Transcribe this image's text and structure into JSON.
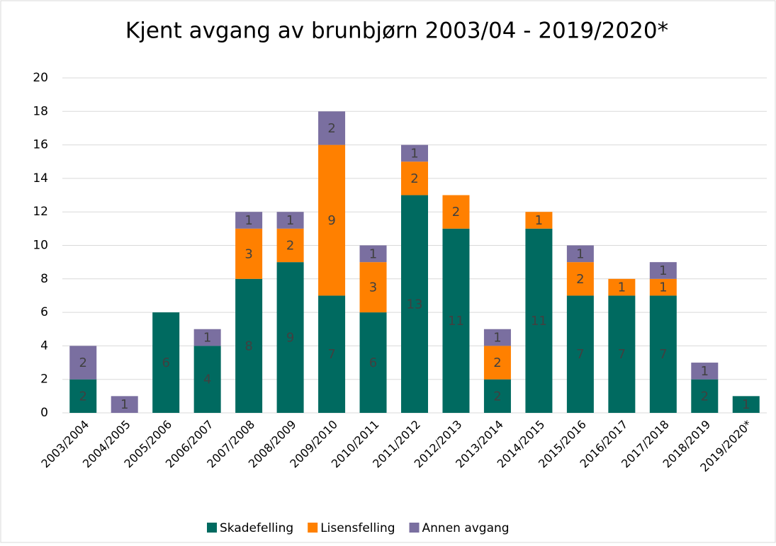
{
  "chart_data": {
    "type": "stacked_bar",
    "title": "Kjent avgang av brunbjørn 2003/04 - 2019/2020*",
    "categories": [
      "2003/2004",
      "2004/2005",
      "2005/2006",
      "2006/2007",
      "2007/2008",
      "2008/2009",
      "2009/2010",
      "2010/2011",
      "2011/2012",
      "2012/2013",
      "2013/2014",
      "2014/2015",
      "2015/2016",
      "2016/2017",
      "2017/2018",
      "2018/2019",
      "2019/2020*"
    ],
    "series": [
      {
        "name": "Skadefelling",
        "color": "#006a60",
        "values": [
          2,
          null,
          6,
          4,
          8,
          9,
          7,
          6,
          13,
          11,
          2,
          11,
          7,
          7,
          7,
          2,
          1
        ]
      },
      {
        "name": "Lisensfelling",
        "color": "#ff8000",
        "values": [
          null,
          null,
          null,
          null,
          3,
          2,
          9,
          3,
          2,
          2,
          2,
          1,
          2,
          1,
          1,
          null,
          null
        ]
      },
      {
        "name": "Annen avgang",
        "color": "#7a6fa0",
        "values": [
          2,
          1,
          null,
          1,
          1,
          1,
          2,
          1,
          1,
          null,
          1,
          null,
          1,
          null,
          1,
          1,
          null
        ]
      }
    ],
    "ylim": [
      0,
      20
    ],
    "yticks": [
      0,
      2,
      4,
      6,
      8,
      10,
      12,
      14,
      16,
      18,
      20
    ],
    "grid": true,
    "legend": "bottom"
  }
}
